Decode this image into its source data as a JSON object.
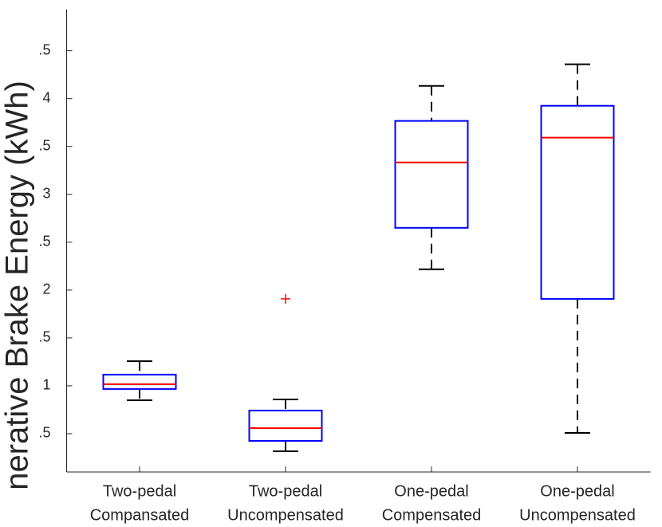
{
  "chart_data": {
    "type": "box",
    "ylabel": "nerative Brake Energy (kWh)",
    "categories": [
      [
        "Two-pedal",
        "Compansated"
      ],
      [
        "Two-pedal",
        "Uncompensated"
      ],
      [
        "One-pedal",
        "Compensated"
      ],
      [
        "One-pedal",
        "Uncompensated"
      ]
    ],
    "boxes": [
      {
        "whisker_low": 0.85,
        "q1": 0.967,
        "median": 1.017,
        "q3": 1.117,
        "whisker_high": 1.258,
        "outliers": []
      },
      {
        "whisker_low": 0.317,
        "q1": 0.425,
        "median": 0.558,
        "q3": 0.742,
        "whisker_high": 0.858,
        "outliers": [
          1.908
        ]
      },
      {
        "whisker_low": 2.217,
        "q1": 2.65,
        "median": 3.333,
        "q3": 3.767,
        "whisker_high": 4.133,
        "outliers": []
      },
      {
        "whisker_low": 0.508,
        "q1": 1.908,
        "median": 3.592,
        "q3": 3.925,
        "whisker_high": 4.358,
        "outliers": []
      }
    ],
    "box_color": "#0000ff",
    "median_color": "#ff0000",
    "whisker_color": "#000000",
    "outlier_color": "#ff0000",
    "ylim": [
      0.1,
      4.93
    ],
    "yticks": [
      {
        "value": 0.5,
        "label": ".5"
      },
      1,
      {
        "value": 1.5,
        "label": ".5"
      },
      2,
      {
        "value": 2.5,
        "label": ".5"
      },
      3,
      {
        "value": 3.5,
        "label": ".5"
      },
      4,
      {
        "value": 4.5,
        "label": ".5"
      }
    ]
  }
}
